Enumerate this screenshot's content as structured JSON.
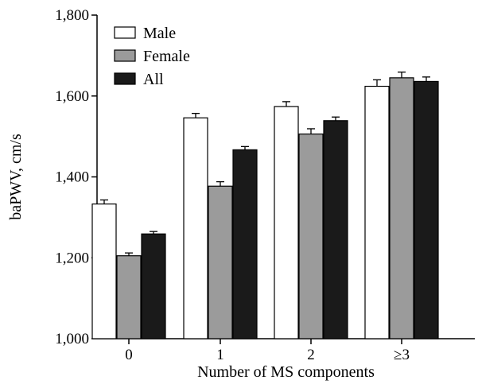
{
  "chart_data": {
    "type": "bar",
    "xlabel": "Number of MS components",
    "ylabel": "baPWV, cm/s",
    "ylim": [
      1000,
      1800
    ],
    "yticks": [
      1000,
      1200,
      1400,
      1600,
      1800
    ],
    "ytick_labels": [
      "1,000",
      "1,200",
      "1,400",
      "1,600",
      "1,800"
    ],
    "categories": [
      "0",
      "1",
      "2",
      "≥3"
    ],
    "series": [
      {
        "name": "Male",
        "color": "#ffffff",
        "values": [
          1333,
          1546,
          1574,
          1624
        ],
        "errors": [
          10,
          11,
          12,
          16
        ]
      },
      {
        "name": "Female",
        "color": "#9b9b9b",
        "values": [
          1205,
          1377,
          1506,
          1645
        ],
        "errors": [
          7,
          11,
          13,
          14
        ]
      },
      {
        "name": "All",
        "color": "#1a1a1a",
        "values": [
          1259,
          1467,
          1539,
          1636
        ],
        "errors": [
          6,
          8,
          9,
          11
        ]
      }
    ],
    "legend_position": "top-left",
    "grid": false,
    "error_bars": true
  }
}
